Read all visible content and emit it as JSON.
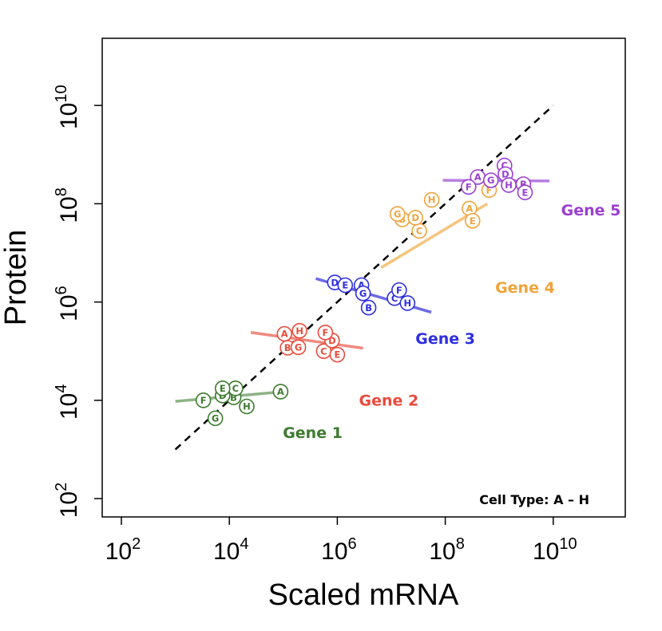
{
  "chart_data": {
    "type": "scatter",
    "title": "",
    "xlabel": "Scaled mRNA",
    "ylabel": "Protein",
    "x_scale": "log10",
    "y_scale": "log10",
    "xlim": [
      50,
      30000000000
    ],
    "ylim": [
      50,
      250000000000
    ],
    "x_ticks": [
      {
        "base": "10",
        "exp": "2"
      },
      {
        "base": "10",
        "exp": "4"
      },
      {
        "base": "10",
        "exp": "6"
      },
      {
        "base": "10",
        "exp": "8"
      },
      {
        "base": "10",
        "exp": "10"
      }
    ],
    "y_ticks": [
      {
        "base": "10",
        "exp": "2"
      },
      {
        "base": "10",
        "exp": "4"
      },
      {
        "base": "10",
        "exp": "6"
      },
      {
        "base": "10",
        "exp": "8"
      },
      {
        "base": "10",
        "exp": "10"
      }
    ],
    "x_tick_values": [
      100,
      10000,
      1000000,
      100000000,
      10000000000
    ],
    "y_tick_values": [
      100,
      10000,
      1000000,
      100000000,
      10000000000
    ],
    "grid": false,
    "annotation": "Cell Type: A – H",
    "reference_line": {
      "style": "dashed",
      "color": "#000000",
      "from": [
        1000,
        1000
      ],
      "to": [
        10000000000,
        10000000000
      ]
    },
    "series": [
      {
        "name": "Gene 1",
        "color": "#3d7a2e",
        "fit_color": "#8fb387",
        "fit": {
          "from": [
            1000,
            9500
          ],
          "to": [
            100000,
            15000
          ]
        },
        "points": [
          {
            "label": "A",
            "x": 89000,
            "y": 15000
          },
          {
            "label": "B",
            "x": 12000,
            "y": 11500
          },
          {
            "label": "C",
            "x": 13000,
            "y": 17500
          },
          {
            "label": "D",
            "x": 7500,
            "y": 12500
          },
          {
            "label": "E",
            "x": 7500,
            "y": 17500
          },
          {
            "label": "F",
            "x": 3300,
            "y": 10000
          },
          {
            "label": "G",
            "x": 5500,
            "y": 4300
          },
          {
            "label": "H",
            "x": 21000,
            "y": 7500
          }
        ]
      },
      {
        "name": "Gene 2",
        "color": "#e84b3c",
        "fit_color": "#ef8a80",
        "fit": {
          "from": [
            25000,
            240000
          ],
          "to": [
            3000000,
            115000
          ]
        },
        "points": [
          {
            "label": "A",
            "x": 105000,
            "y": 225000
          },
          {
            "label": "B",
            "x": 120000,
            "y": 117000
          },
          {
            "label": "C",
            "x": 560000,
            "y": 100000
          },
          {
            "label": "D",
            "x": 800000,
            "y": 165000
          },
          {
            "label": "E",
            "x": 1000000,
            "y": 85000
          },
          {
            "label": "F",
            "x": 600000,
            "y": 240000
          },
          {
            "label": "G",
            "x": 190000,
            "y": 120000
          },
          {
            "label": "H",
            "x": 200000,
            "y": 260000
          }
        ]
      },
      {
        "name": "Gene 3",
        "color": "#2e2ee0",
        "fit_color": "#6b6be6",
        "fit": {
          "from": [
            400000,
            3000000
          ],
          "to": [
            55000000,
            620000
          ]
        },
        "points": [
          {
            "label": "A",
            "x": 2800000,
            "y": 2200000
          },
          {
            "label": "B",
            "x": 3800000,
            "y": 770000
          },
          {
            "label": "C",
            "x": 11500000,
            "y": 1200000
          },
          {
            "label": "D",
            "x": 900000,
            "y": 2500000
          },
          {
            "label": "E",
            "x": 1400000,
            "y": 2200000
          },
          {
            "label": "F",
            "x": 14000000,
            "y": 1750000
          },
          {
            "label": "G",
            "x": 3000000,
            "y": 1500000
          },
          {
            "label": "H",
            "x": 20000000,
            "y": 950000
          }
        ]
      },
      {
        "name": "Gene 4",
        "color": "#f2a33a",
        "fit_color": "#f5c57e",
        "fit": {
          "from": [
            6500000,
            5000000
          ],
          "to": [
            600000000,
            100000000
          ]
        },
        "points": [
          {
            "label": "A",
            "x": 280000000,
            "y": 80000000
          },
          {
            "label": "B",
            "x": 16000000,
            "y": 48000000
          },
          {
            "label": "C",
            "x": 33000000,
            "y": 28000000
          },
          {
            "label": "D",
            "x": 28000000,
            "y": 52000000
          },
          {
            "label": "E",
            "x": 320000000,
            "y": 45000000
          },
          {
            "label": "F",
            "x": 650000000,
            "y": 190000000
          },
          {
            "label": "G",
            "x": 13000000,
            "y": 62000000
          },
          {
            "label": "H",
            "x": 56000000,
            "y": 120000000
          }
        ]
      },
      {
        "name": "Gene 5",
        "color": "#9a3fd1",
        "fit_color": "#b77ee0",
        "fit": {
          "from": [
            90000000,
            300000000
          ],
          "to": [
            8500000000,
            290000000
          ]
        },
        "points": [
          {
            "label": "A",
            "x": 400000000,
            "y": 350000000
          },
          {
            "label": "B",
            "x": 2800000000,
            "y": 250000000
          },
          {
            "label": "C",
            "x": 1250000000,
            "y": 600000000
          },
          {
            "label": "D",
            "x": 1300000000,
            "y": 400000000
          },
          {
            "label": "E",
            "x": 3000000000,
            "y": 170000000
          },
          {
            "label": "F",
            "x": 270000000,
            "y": 220000000
          },
          {
            "label": "G",
            "x": 700000000,
            "y": 300000000
          },
          {
            "label": "H",
            "x": 1500000000,
            "y": 240000000
          }
        ]
      }
    ],
    "gene_labels": [
      {
        "series": 0,
        "x": 350000,
        "y": 1700
      },
      {
        "series": 1,
        "x": 9000000,
        "y": 7800
      },
      {
        "series": 2,
        "x": 100000000,
        "y": 140000
      },
      {
        "series": 3,
        "x": 3000000000,
        "y": 1550000
      },
      {
        "series": 4,
        "x": 50000000000,
        "y": 58000000
      }
    ]
  }
}
